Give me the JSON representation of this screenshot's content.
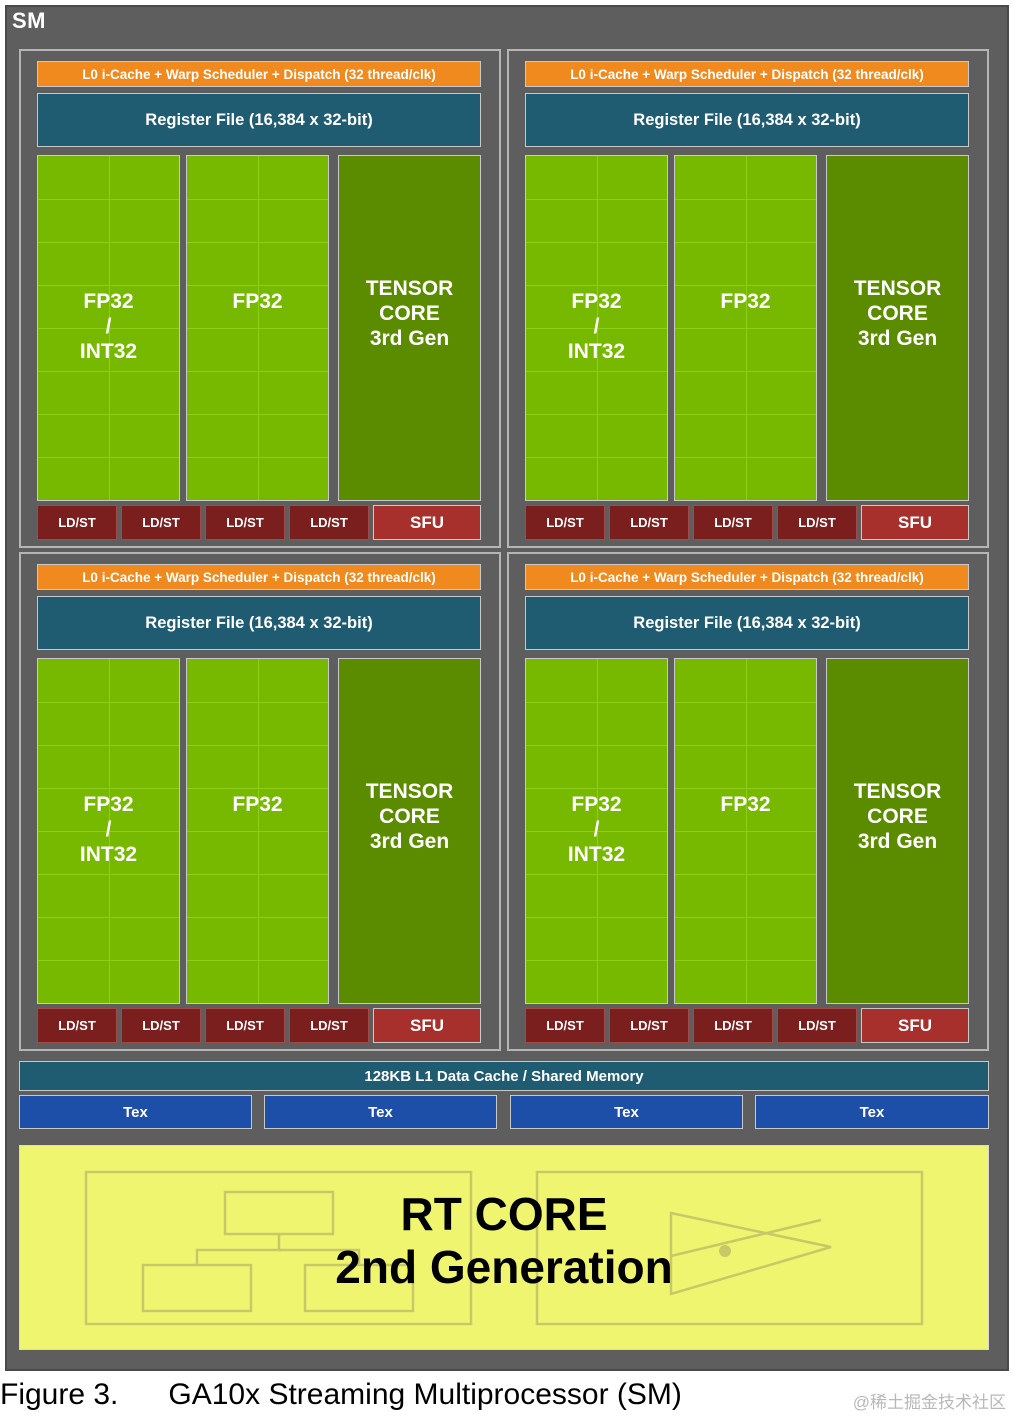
{
  "sm": {
    "title": "SM",
    "colors": {
      "background": "#5e5e5e",
      "cache": "#f08a1e",
      "register_file": "#1f5c72",
      "core": "#76b900",
      "tensor": "#5b8c00",
      "ldst": "#7a1e1e",
      "sfu": "#a8302c",
      "tex": "#1e4fa8",
      "rt_core": "#f0f570"
    },
    "quadrants": [
      {
        "cache": "L0 i-Cache + Warp Scheduler + Dispatch (32 thread/clk)",
        "register_file": "Register File (16,384 x 32-bit)",
        "col1": [
          "FP32",
          "/",
          "INT32"
        ],
        "col2": "FP32",
        "tensor": [
          "TENSOR",
          "CORE",
          "3rd Gen"
        ],
        "units": [
          "LD/ST",
          "LD/ST",
          "LD/ST",
          "LD/ST"
        ],
        "sfu": "SFU"
      },
      {
        "cache": "L0 i-Cache + Warp Scheduler + Dispatch (32 thread/clk)",
        "register_file": "Register File (16,384 x 32-bit)",
        "col1": [
          "FP32",
          "/",
          "INT32"
        ],
        "col2": "FP32",
        "tensor": [
          "TENSOR",
          "CORE",
          "3rd Gen"
        ],
        "units": [
          "LD/ST",
          "LD/ST",
          "LD/ST",
          "LD/ST"
        ],
        "sfu": "SFU"
      },
      {
        "cache": "L0 i-Cache + Warp Scheduler + Dispatch (32 thread/clk)",
        "register_file": "Register File (16,384 x 32-bit)",
        "col1": [
          "FP32",
          "/",
          "INT32"
        ],
        "col2": "FP32",
        "tensor": [
          "TENSOR",
          "CORE",
          "3rd Gen"
        ],
        "units": [
          "LD/ST",
          "LD/ST",
          "LD/ST",
          "LD/ST"
        ],
        "sfu": "SFU"
      },
      {
        "cache": "L0 i-Cache + Warp Scheduler + Dispatch (32 thread/clk)",
        "register_file": "Register File (16,384 x 32-bit)",
        "col1": [
          "FP32",
          "/",
          "INT32"
        ],
        "col2": "FP32",
        "tensor": [
          "TENSOR",
          "CORE",
          "3rd Gen"
        ],
        "units": [
          "LD/ST",
          "LD/ST",
          "LD/ST",
          "LD/ST"
        ],
        "sfu": "SFU"
      }
    ],
    "l1_cache": "128KB L1 Data Cache / Shared Memory",
    "tex_units": [
      "Tex",
      "Tex",
      "Tex",
      "Tex"
    ],
    "rt_core": [
      "RT CORE",
      "2nd Generation"
    ]
  },
  "caption": {
    "figure": "Figure 3.",
    "title": "GA10x Streaming Multiprocessor (SM)"
  },
  "watermark": "@稀土掘金技术社区"
}
